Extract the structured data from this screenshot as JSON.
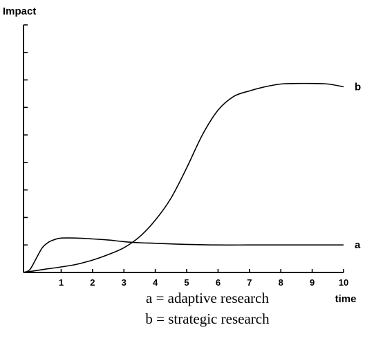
{
  "chart_data": {
    "type": "line",
    "ylabel": "Impact",
    "xlabel": "time",
    "xlim": [
      -0.2,
      10
    ],
    "ylim": [
      0,
      9
    ],
    "x_ticks": [
      "1",
      "2",
      "3",
      "4",
      "5",
      "6",
      "7",
      "8",
      "9",
      "10"
    ],
    "y_tick_count": 9,
    "series": [
      {
        "name": "a",
        "x": [
          -0.2,
          0.0,
          0.2,
          0.4,
          0.6,
          0.8,
          1.0,
          1.5,
          2.0,
          2.5,
          3.0,
          3.5,
          4.0,
          5.0,
          6.0,
          7.0,
          8.0,
          9.0,
          10.0
        ],
        "y": [
          0.0,
          0.1,
          0.5,
          0.9,
          1.1,
          1.2,
          1.25,
          1.25,
          1.22,
          1.18,
          1.12,
          1.08,
          1.06,
          1.02,
          1.0,
          1.0,
          1.0,
          1.0,
          1.0
        ]
      },
      {
        "name": "b",
        "x": [
          -0.2,
          0.5,
          1.0,
          1.5,
          2.0,
          2.5,
          3.0,
          3.5,
          4.0,
          4.5,
          5.0,
          5.5,
          6.0,
          6.5,
          7.0,
          7.5,
          8.0,
          8.5,
          9.0,
          9.5,
          10.0
        ],
        "y": [
          0.0,
          0.12,
          0.2,
          0.3,
          0.45,
          0.65,
          0.9,
          1.3,
          1.9,
          2.7,
          3.8,
          5.0,
          5.9,
          6.4,
          6.6,
          6.75,
          6.85,
          6.87,
          6.87,
          6.85,
          6.75
        ]
      }
    ],
    "legend": [
      "a = adaptive research",
      "b = strategic research"
    ]
  }
}
